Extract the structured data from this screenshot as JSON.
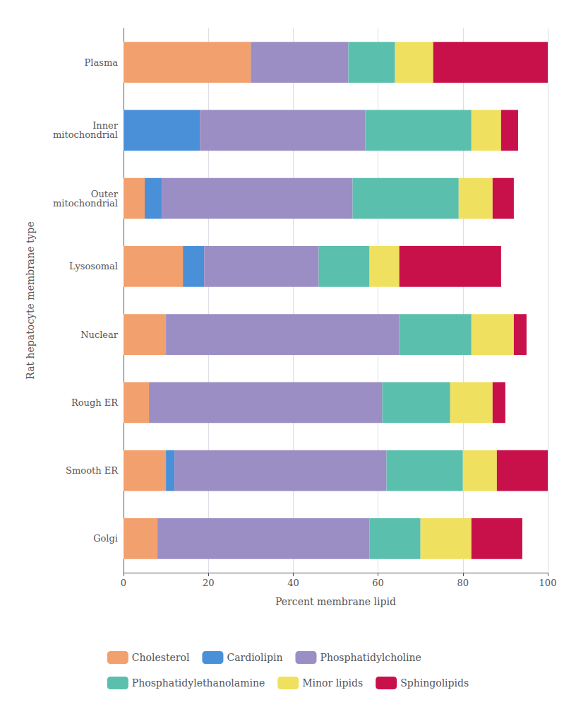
{
  "chart_data": {
    "type": "bar",
    "orientation": "horizontal",
    "stacked": true,
    "xlabel": "Percent membrane lipid",
    "ylabel": "Rat hepatocyte membrane type",
    "categories": [
      "Golgi",
      "Smooth ER",
      "Rough ER",
      "Nuclear",
      "Lysosomal",
      "Outer\nmitochondrial",
      "Inner\nmitochondrial",
      "Plasma"
    ],
    "series": [
      {
        "name": "Cholesterol",
        "color": "#F2A06E",
        "values": [
          8,
          10,
          6,
          10,
          14,
          5,
          0,
          30
        ]
      },
      {
        "name": "Cardiolipin",
        "color": "#4A90D9",
        "values": [
          0,
          2,
          0,
          0,
          5,
          4,
          18,
          0
        ]
      },
      {
        "name": "Phosphatidylcholine",
        "color": "#9B8EC4",
        "values": [
          50,
          50,
          55,
          55,
          27,
          45,
          39,
          23
        ]
      },
      {
        "name": "Phosphatidylethanolamine",
        "color": "#5BBFAD",
        "values": [
          12,
          18,
          16,
          17,
          12,
          25,
          25,
          11
        ]
      },
      {
        "name": "Minor lipids",
        "color": "#F0E060",
        "values": [
          12,
          8,
          10,
          10,
          7,
          8,
          7,
          9
        ]
      },
      {
        "name": "Sphingolipids",
        "color": "#C8114A",
        "values": [
          12,
          12,
          3,
          3,
          24,
          5,
          4,
          27
        ]
      }
    ],
    "xlim": [
      0,
      100
    ],
    "xticks": [
      0,
      20,
      40,
      60,
      80,
      100
    ],
    "grid": true,
    "legend": "bottom"
  }
}
